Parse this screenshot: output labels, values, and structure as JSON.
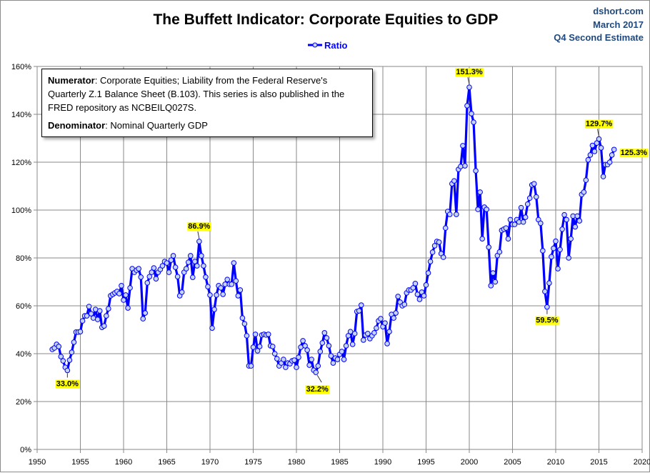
{
  "chart_data": {
    "type": "line",
    "title": "The Buffett Indicator: Corporate Equities to GDP",
    "source_lines": [
      "dshort.com",
      "March 2017",
      "Q4 Second Estimate"
    ],
    "series": [
      {
        "name": "Ratio",
        "color": "#0000ff",
        "marker_fill": "#c5d3f5",
        "frequency": "quarterly",
        "values_by_year": {
          "1951": [
            41.8
          ],
          "1952": [
            42.4,
            43.9,
            43,
            38.8
          ],
          "1953": [
            37,
            34.3,
            33.0,
            37.3
          ],
          "1954": [
            40.6,
            44.8,
            49,
            49
          ],
          "1955": [
            49.2,
            53.7,
            55.8,
            55.8
          ],
          "1956": [
            59.7,
            56.7,
            54.9,
            58.5
          ],
          "1957": [
            54.3,
            57.9,
            51,
            51.6
          ],
          "1958": [
            55.8,
            58.8,
            64.2,
            64.8
          ],
          "1959": [
            65.4,
            66,
            65.1,
            68.4
          ],
          "1960": [
            62.4,
            64.5,
            59.1,
            67.5
          ],
          "1961": [
            75.5,
            74,
            74.9,
            75.5
          ],
          "1962": [
            72,
            54.6,
            57,
            69.6
          ],
          "1963": [
            72.2,
            74,
            75.8,
            71.3
          ],
          "1964": [
            74,
            75.2,
            76.7,
            78.5
          ],
          "1965": [
            77.9,
            74,
            79.1,
            80.9
          ],
          "1966": [
            76.1,
            72.2,
            64.2,
            65.7
          ],
          "1967": [
            74,
            75.5,
            78.2,
            80.9
          ],
          "1968": [
            71.9,
            78.5,
            76.7,
            86.9
          ],
          "1969": [
            80.9,
            76.7,
            72,
            68
          ],
          "1970": [
            64.5,
            50.7,
            58.5,
            64.5
          ],
          "1971": [
            68.4,
            67.5,
            64.8,
            69
          ],
          "1972": [
            71,
            69,
            69,
            77.9
          ],
          "1973": [
            70.4,
            64.2,
            66.6,
            54.9
          ],
          "1974": [
            52.5,
            47.5,
            34.9,
            34.9
          ],
          "1975": [
            42.7,
            48.1,
            41.2,
            43
          ],
          "1976": [
            47.8,
            48.1,
            47.8,
            48.1
          ],
          "1977": [
            43.3,
            43,
            40,
            37.9
          ],
          "1978": [
            34.9,
            36.1,
            37.6,
            34.3
          ],
          "1979": [
            36.1,
            35.8,
            37,
            37.3
          ],
          "1980": [
            34.3,
            38.5,
            42.7,
            45.4
          ],
          "1981": [
            43.3,
            41.5,
            35.2,
            37.6
          ],
          "1982": [
            33.1,
            32.2,
            34.9,
            40.9
          ],
          "1983": [
            44.5,
            48.7,
            46.6,
            43.3
          ],
          "1984": [
            39.1,
            36.1,
            38.2,
            37.6
          ],
          "1985": [
            39.7,
            40.9,
            37.6,
            43.3
          ],
          "1986": [
            47.5,
            49.2,
            43.9,
            48.4
          ],
          "1987": [
            57.6,
            57.9,
            60.3,
            45.7
          ],
          "1988": [
            47.8,
            48.4,
            46.3,
            47.5
          ],
          "1989": [
            48.7,
            50.7,
            53.7,
            54.6
          ],
          "1990": [
            51.3,
            52.8,
            44.2,
            49.2
          ],
          "1991": [
            56.4,
            54.9,
            57,
            63.9
          ],
          "1992": [
            61.5,
            60,
            60.6,
            65.4
          ],
          "1993": [
            66.6,
            66.6,
            67.5,
            69.3
          ],
          "1994": [
            64.8,
            62.7,
            65.7,
            64.2
          ],
          "1995": [
            68.7,
            73.7,
            78.5,
            82.4
          ],
          "1996": [
            85.1,
            86.9,
            86.6,
            81.8
          ],
          "1997": [
            80.3,
            92.5,
            99.4,
            98.2
          ],
          "1998": [
            111,
            112.2,
            98.2,
            117
          ],
          "1999": [
            118.2,
            126.9,
            118.5,
            143.6
          ],
          "2000": [
            151.3,
            140.3,
            136.7,
            116.4
          ],
          "2001": [
            100.3,
            107.5,
            88,
            101.2
          ],
          "2002": [
            100.3,
            84.5,
            68.4,
            73.7
          ],
          "2003": [
            70,
            81,
            82.5,
            91.5
          ],
          "2004": [
            92,
            92.5,
            88,
            96
          ],
          "2005": [
            94,
            94,
            96,
            95
          ],
          "2006": [
            101,
            95,
            97,
            102.5
          ],
          "2007": [
            105,
            110.5,
            111,
            105.5
          ],
          "2008": [
            96,
            94.5,
            83,
            66
          ],
          "2009": [
            59.5,
            69.5,
            80.5,
            84
          ],
          "2010": [
            87,
            75.5,
            83.5,
            92
          ],
          "2011": [
            98,
            96,
            80,
            88
          ],
          "2012": [
            97.5,
            93,
            97.5,
            95.5
          ],
          "2013": [
            106.5,
            107.5,
            112.5,
            121
          ],
          "2014": [
            123,
            127,
            124.5,
            128
          ],
          "2015": [
            129.7,
            126,
            114,
            119
          ],
          "2016": [
            119,
            120,
            123,
            125.3
          ]
        }
      }
    ],
    "xlim": [
      1950,
      2020
    ],
    "ylim": [
      0,
      160
    ],
    "x_ticks": [
      1950,
      1955,
      1960,
      1965,
      1970,
      1975,
      1980,
      1985,
      1990,
      1995,
      2000,
      2005,
      2010,
      2015,
      2020
    ],
    "y_ticks": [
      0,
      20,
      40,
      60,
      80,
      100,
      120,
      140,
      160
    ],
    "y_tick_format": "percent",
    "grid": true,
    "legend_placement": "top-center",
    "annotations": [
      {
        "year": "1953",
        "quarter": 3,
        "text": "33.0%",
        "placement": "below"
      },
      {
        "year": "1968",
        "quarter": 4,
        "text": "86.9%",
        "placement": "above"
      },
      {
        "year": "1982",
        "quarter": 2,
        "text": "32.2%",
        "placement": "below-right"
      },
      {
        "year": "2000",
        "quarter": 1,
        "text": "151.3%",
        "placement": "above"
      },
      {
        "year": "2009",
        "quarter": 1,
        "text": "59.5%",
        "placement": "below"
      },
      {
        "year": "2015",
        "quarter": 1,
        "text": "129.7%",
        "placement": "above"
      },
      {
        "year": "2016",
        "quarter": 4,
        "text": "125.3%",
        "placement": "right"
      }
    ],
    "label_highlight_color": "#ffff00",
    "note": {
      "numerator_label": "Numerator",
      "numerator_text": ": Corporate Equities; Liability from the Federal Reserve's Quarterly Z.1 Balance Sheet (B.103). This series is also published in the FRED repository  as NCBEILQ027S.",
      "denominator_label": "Denominator",
      "denominator_text": ": Nominal Quarterly GDP"
    }
  }
}
